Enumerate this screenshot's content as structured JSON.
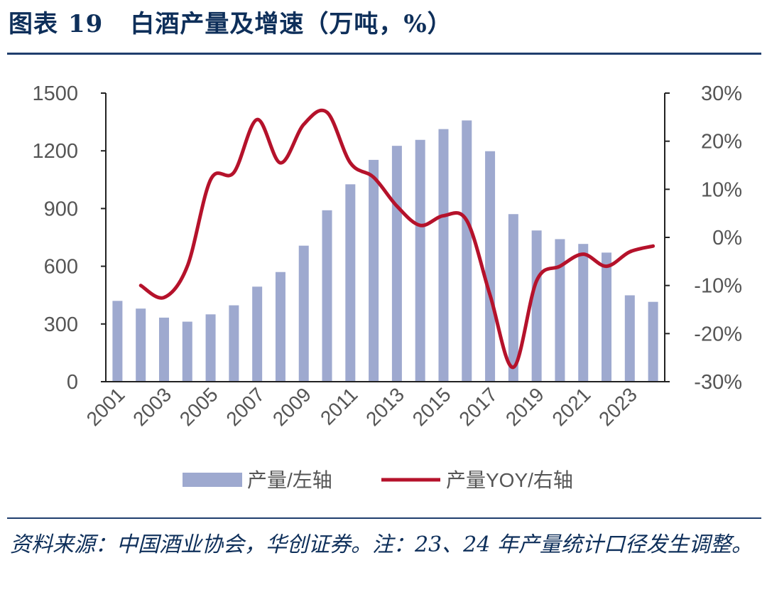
{
  "header": {
    "figure_label": "图表",
    "figure_number": "19",
    "title": "白酒产量及增速（万吨，%）"
  },
  "chart_data": {
    "type": "bar+line",
    "title": "白酒产量及增速（万吨，%）",
    "categories": [
      "2001",
      "2002",
      "2003",
      "2004",
      "2005",
      "2006",
      "2007",
      "2008",
      "2009",
      "2010",
      "2011",
      "2012",
      "2013",
      "2014",
      "2015",
      "2016",
      "2017",
      "2018",
      "2019",
      "2020",
      "2021",
      "2022",
      "2023",
      "2024"
    ],
    "x_tick_labels": [
      "2001",
      "2003",
      "2005",
      "2007",
      "2009",
      "2011",
      "2013",
      "2015",
      "2017",
      "2019",
      "2021",
      "2023"
    ],
    "series": [
      {
        "name": "产量/左轴",
        "type": "bar",
        "axis": "left",
        "color": "#9ea9cf",
        "values": [
          420,
          380,
          333,
          312,
          350,
          397,
          494,
          570,
          707,
          891,
          1026,
          1153,
          1226,
          1257,
          1313,
          1358,
          1198,
          871,
          786,
          741,
          716,
          671,
          449,
          415
        ]
      },
      {
        "name": "产量YOY/右轴",
        "type": "line",
        "axis": "right",
        "color": "#b5122b",
        "values": [
          null,
          -10.0,
          -12.5,
          -6.0,
          12.0,
          13.5,
          24.5,
          15.5,
          23.5,
          26.0,
          15.5,
          12.5,
          6.5,
          2.5,
          4.5,
          3.5,
          -12.0,
          -27.0,
          -9.0,
          -6.0,
          -3.5,
          -6.0,
          -3.0,
          -1.8
        ]
      }
    ],
    "y_left": {
      "lim": [
        0,
        1500
      ],
      "ticks": [
        0,
        300,
        600,
        900,
        1200,
        1500
      ],
      "tick_labels": [
        "0",
        "300",
        "600",
        "900",
        "1200",
        "1500"
      ]
    },
    "y_right": {
      "lim": [
        -30,
        30
      ],
      "ticks": [
        -30,
        -20,
        -10,
        0,
        10,
        20,
        30
      ],
      "tick_labels": [
        "-30%",
        "-20%",
        "-10%",
        "0%",
        "10%",
        "20%",
        "30%"
      ]
    },
    "legend": {
      "placement": "bottom-center",
      "items": [
        "产量/左轴",
        "产量YOY/右轴"
      ]
    },
    "grid": false
  },
  "footer": {
    "source_text": "资料来源：中国酒业协会，华创证券。注：23、24 年产量统计口径发生调整。"
  }
}
